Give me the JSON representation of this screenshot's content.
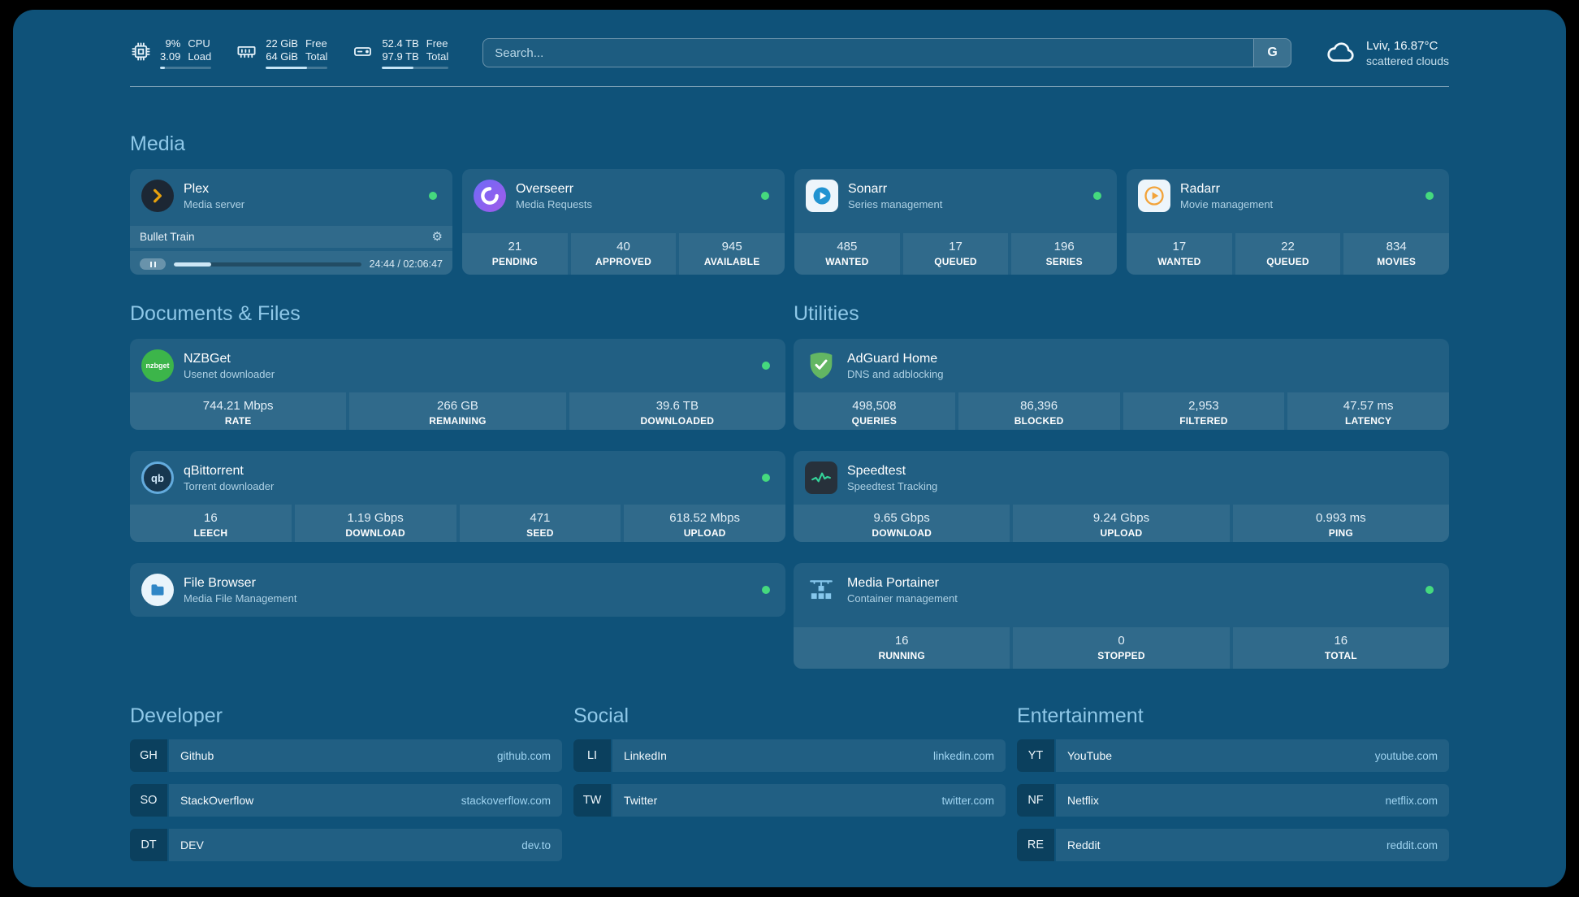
{
  "topbar": {
    "resources": [
      {
        "icon": "cpu-icon",
        "value_top": "9%",
        "value_bottom": "3.09",
        "label_top": "CPU",
        "label_bottom": "Load",
        "progress": 9
      },
      {
        "icon": "memory-icon",
        "value_top": "22 GiB",
        "value_bottom": "64 GiB",
        "label_top": "Free",
        "label_bottom": "Total",
        "progress": 66
      },
      {
        "icon": "disk-icon",
        "value_top": "52.4 TB",
        "value_bottom": "97.9 TB",
        "label_top": "Free",
        "label_bottom": "Total",
        "progress": 47
      }
    ],
    "search": {
      "placeholder": "Search...",
      "provider_label": "G"
    },
    "weather": {
      "location": "Lviv, 16.87°C",
      "condition": "scattered clouds"
    }
  },
  "media": {
    "title": "Media",
    "plex": {
      "name": "Plex",
      "subtitle": "Media server",
      "now_playing": "Bullet Train",
      "time": "24:44 / 02:06:47",
      "progress": 20
    },
    "overseerr": {
      "name": "Overseerr",
      "subtitle": "Media Requests",
      "stats": [
        {
          "value": "21",
          "label": "PENDING"
        },
        {
          "value": "40",
          "label": "APPROVED"
        },
        {
          "value": "945",
          "label": "AVAILABLE"
        }
      ]
    },
    "sonarr": {
      "name": "Sonarr",
      "subtitle": "Series management",
      "stats": [
        {
          "value": "485",
          "label": "WANTED"
        },
        {
          "value": "17",
          "label": "QUEUED"
        },
        {
          "value": "196",
          "label": "SERIES"
        }
      ]
    },
    "radarr": {
      "name": "Radarr",
      "subtitle": "Movie management",
      "stats": [
        {
          "value": "17",
          "label": "WANTED"
        },
        {
          "value": "22",
          "label": "QUEUED"
        },
        {
          "value": "834",
          "label": "MOVIES"
        }
      ]
    }
  },
  "documents": {
    "title": "Documents & Files",
    "nzbget": {
      "name": "NZBGet",
      "subtitle": "Usenet downloader",
      "stats": [
        {
          "value": "744.21 Mbps",
          "label": "RATE"
        },
        {
          "value": "266 GB",
          "label": "REMAINING"
        },
        {
          "value": "39.6 TB",
          "label": "DOWNLOADED"
        }
      ]
    },
    "qbittorrent": {
      "name": "qBittorrent",
      "subtitle": "Torrent downloader",
      "stats": [
        {
          "value": "16",
          "label": "LEECH"
        },
        {
          "value": "1.19 Gbps",
          "label": "DOWNLOAD"
        },
        {
          "value": "471",
          "label": "SEED"
        },
        {
          "value": "618.52 Mbps",
          "label": "UPLOAD"
        }
      ]
    },
    "filebrowser": {
      "name": "File Browser",
      "subtitle": "Media File Management"
    }
  },
  "utilities": {
    "title": "Utilities",
    "adguard": {
      "name": "AdGuard Home",
      "subtitle": "DNS and adblocking",
      "stats": [
        {
          "value": "498,508",
          "label": "QUERIES"
        },
        {
          "value": "86,396",
          "label": "BLOCKED"
        },
        {
          "value": "2,953",
          "label": "FILTERED"
        },
        {
          "value": "47.57 ms",
          "label": "LATENCY"
        }
      ]
    },
    "speedtest": {
      "name": "Speedtest",
      "subtitle": "Speedtest Tracking",
      "stats": [
        {
          "value": "9.65 Gbps",
          "label": "DOWNLOAD"
        },
        {
          "value": "9.24 Gbps",
          "label": "UPLOAD"
        },
        {
          "value": "0.993 ms",
          "label": "PING"
        }
      ]
    },
    "portainer": {
      "name": "Media Portainer",
      "subtitle": "Container management",
      "stats": [
        {
          "value": "16",
          "label": "RUNNING"
        },
        {
          "value": "0",
          "label": "STOPPED"
        },
        {
          "value": "16",
          "label": "TOTAL"
        }
      ]
    }
  },
  "bookmarks": [
    {
      "title": "Developer",
      "items": [
        {
          "abbr": "GH",
          "name": "Github",
          "url": "github.com"
        },
        {
          "abbr": "SO",
          "name": "StackOverflow",
          "url": "stackoverflow.com"
        },
        {
          "abbr": "DT",
          "name": "DEV",
          "url": "dev.to"
        }
      ]
    },
    {
      "title": "Social",
      "items": [
        {
          "abbr": "LI",
          "name": "LinkedIn",
          "url": "linkedin.com"
        },
        {
          "abbr": "TW",
          "name": "Twitter",
          "url": "twitter.com"
        }
      ]
    },
    {
      "title": "Entertainment",
      "items": [
        {
          "abbr": "YT",
          "name": "YouTube",
          "url": "youtube.com"
        },
        {
          "abbr": "NF",
          "name": "Netflix",
          "url": "netflix.com"
        },
        {
          "abbr": "RE",
          "name": "Reddit",
          "url": "reddit.com"
        }
      ]
    }
  ],
  "icons": {
    "nzbget_text": "nzbget",
    "qbittorrent_text": "qb"
  }
}
